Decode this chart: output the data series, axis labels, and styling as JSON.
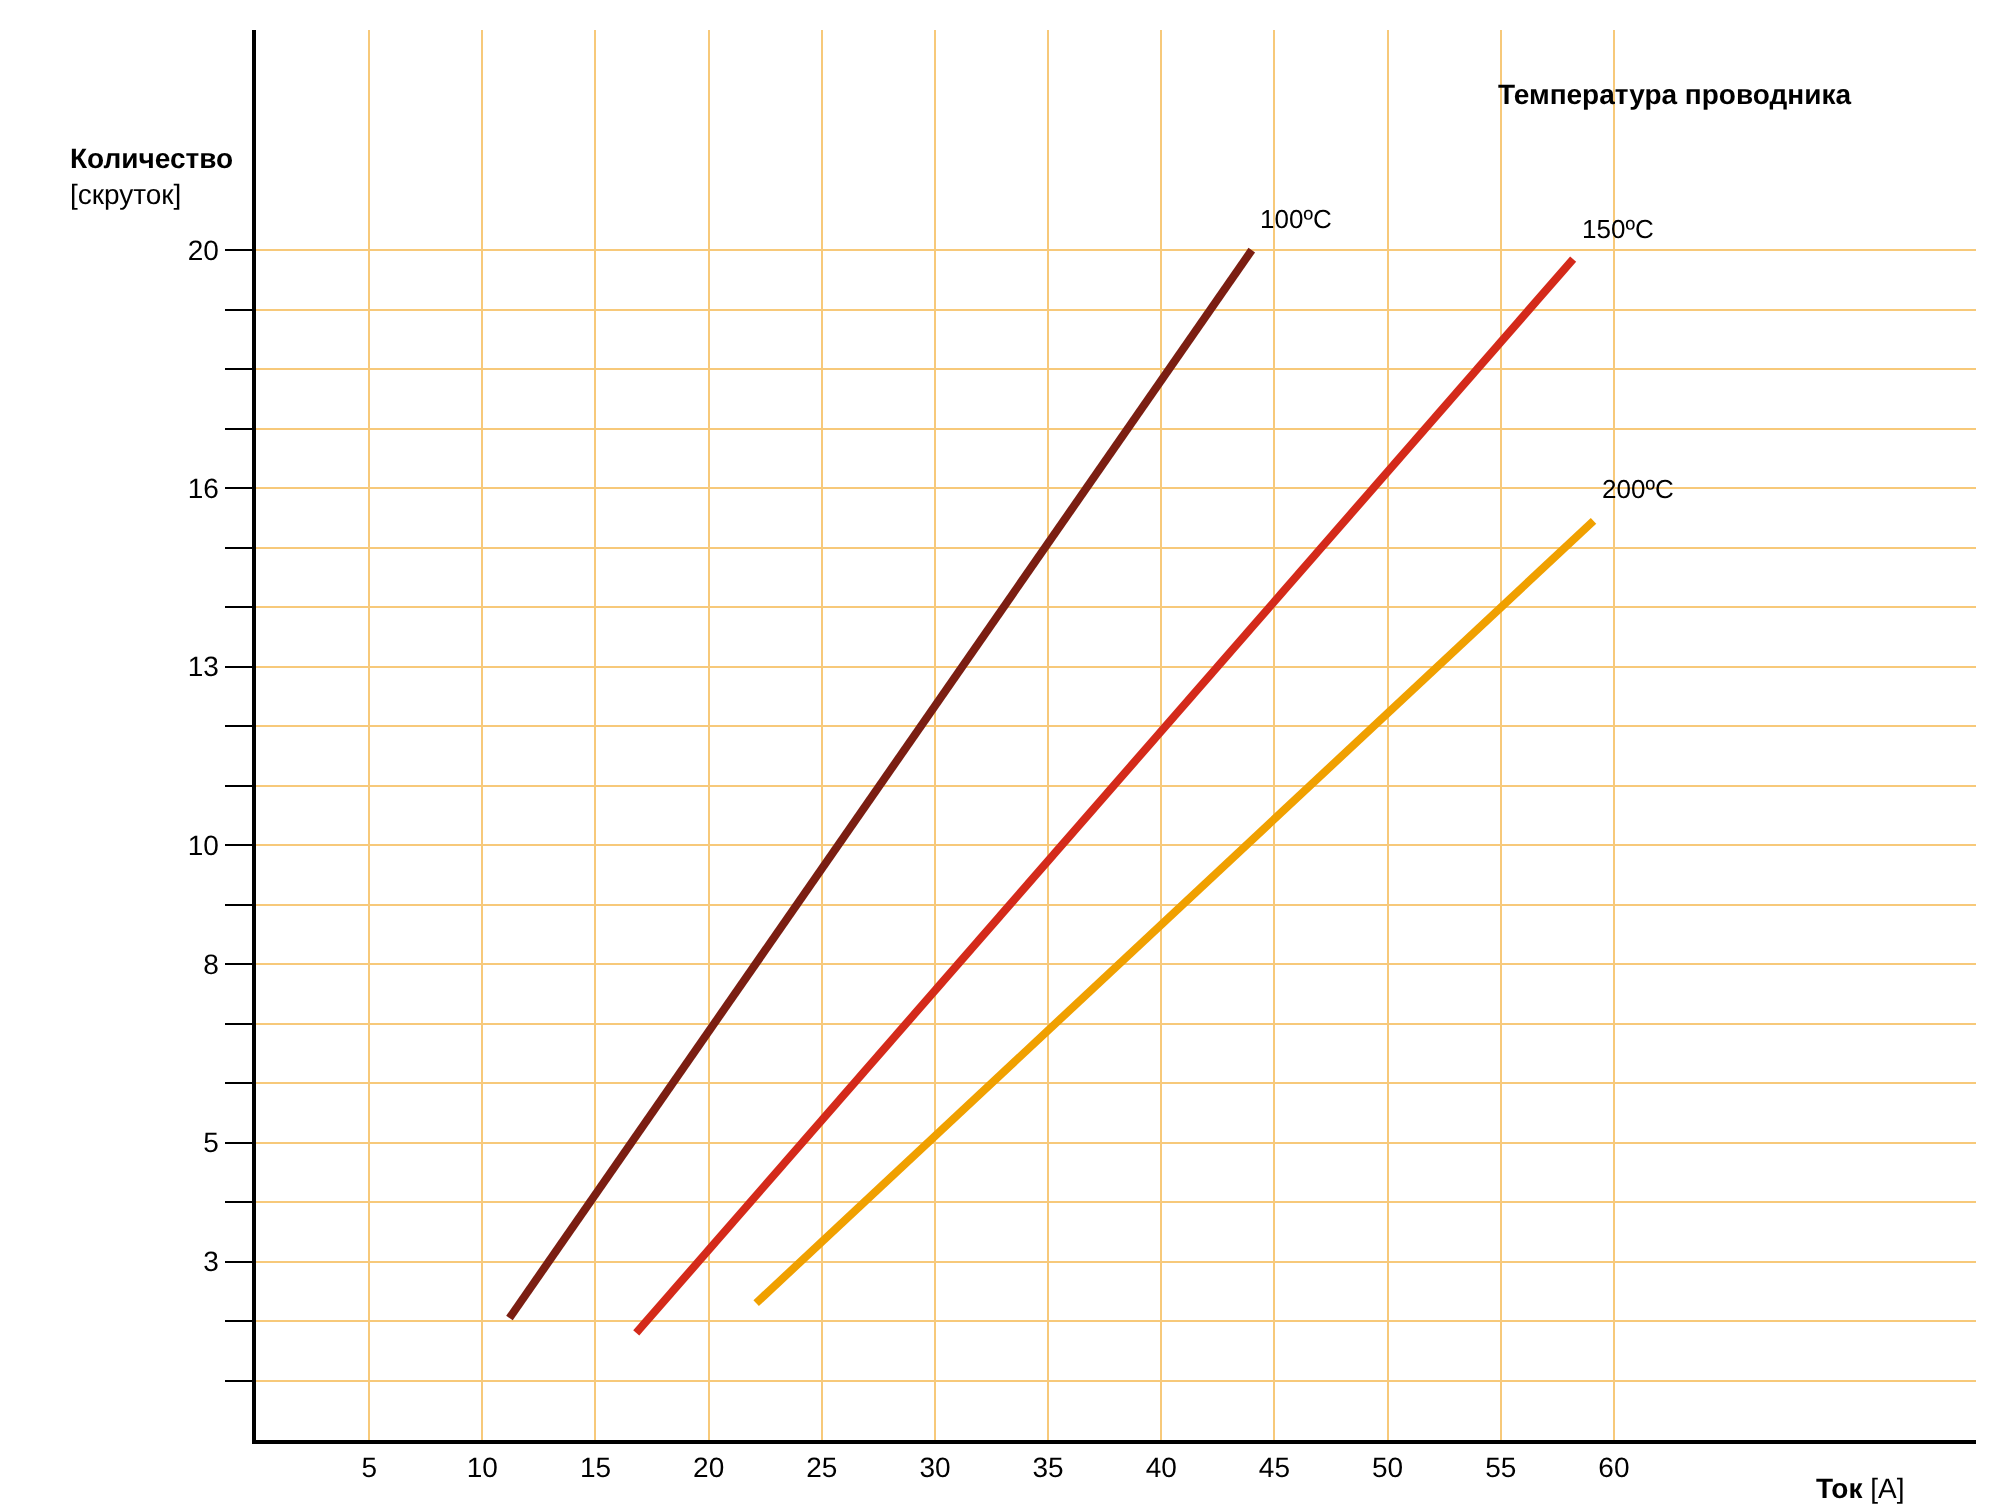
{
  "chart_data": {
    "type": "line",
    "title": "Температура проводника",
    "ylabel": "Количество\n[скруток]",
    "xlabel": "Ток [A]",
    "series": [
      {
        "name": "100ºC",
        "color": "#7b1e12",
        "x": [
          11.2,
          44
        ],
        "values": [
          2.05,
          20
        ]
      },
      {
        "name": "150ºC",
        "color": "#d42a1a",
        "x": [
          16.8,
          58.2
        ],
        "values": [
          1.8,
          19.85
        ]
      },
      {
        "name": "200ºC",
        "color": "#f0a000",
        "x": [
          22.1,
          59.1
        ],
        "values": [
          2.3,
          15.45
        ]
      }
    ],
    "xlim": [
      0,
      76
    ],
    "ylim": [
      0,
      23.7
    ],
    "xticks": [
      5,
      10,
      15,
      20,
      25,
      30,
      35,
      40,
      45,
      50,
      55,
      60
    ],
    "yticks": [
      {
        "value": 1,
        "label": null
      },
      {
        "value": 2,
        "label": null
      },
      3,
      {
        "value": 4,
        "label": null
      },
      5,
      {
        "value": 6,
        "label": null
      },
      {
        "value": 7,
        "label": null
      },
      8,
      {
        "value": 9,
        "label": null
      },
      10,
      {
        "value": 11,
        "label": null
      },
      {
        "value": 12,
        "label": null
      },
      13,
      {
        "value": 14,
        "label": null
      },
      {
        "value": 15,
        "label": null
      },
      16,
      {
        "value": 17,
        "label": null
      },
      {
        "value": 18,
        "label": null
      },
      {
        "value": 19,
        "label": null
      },
      20
    ],
    "grid": true,
    "marker": "none",
    "line_style": "solid",
    "legend": false
  }
}
